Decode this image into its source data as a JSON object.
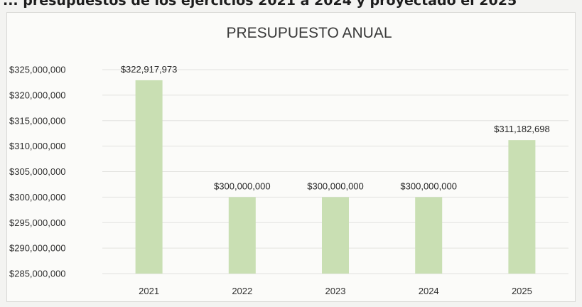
{
  "header_fragment": "... presupuestos de los ejercicios 2021 a 2024 y proyectado el 2025",
  "chart_data": {
    "type": "bar",
    "title": "PRESUPUESTO ANUAL",
    "xlabel": "",
    "ylabel": "",
    "categories": [
      "2021",
      "2022",
      "2023",
      "2024",
      "2025"
    ],
    "values": [
      322917973,
      300000000,
      300000000,
      300000000,
      311182698
    ],
    "data_labels": [
      "$322,917,973",
      "$300,000,000",
      "$300,000,000",
      "$300,000,000",
      "$311,182,698"
    ],
    "ylim": [
      285000000,
      325000000
    ],
    "yticks": [
      285000000,
      290000000,
      295000000,
      300000000,
      305000000,
      310000000,
      315000000,
      320000000,
      325000000
    ],
    "ytick_labels": [
      "$285,000,000",
      "$290,000,000",
      "$295,000,000",
      "$300,000,000",
      "$305,000,000",
      "$310,000,000",
      "$315,000,000",
      "$320,000,000",
      "$325,000,000"
    ],
    "grid": true,
    "legend": "none",
    "bar_color": "#c9dfb3",
    "grid_color": "#e2e2df"
  }
}
